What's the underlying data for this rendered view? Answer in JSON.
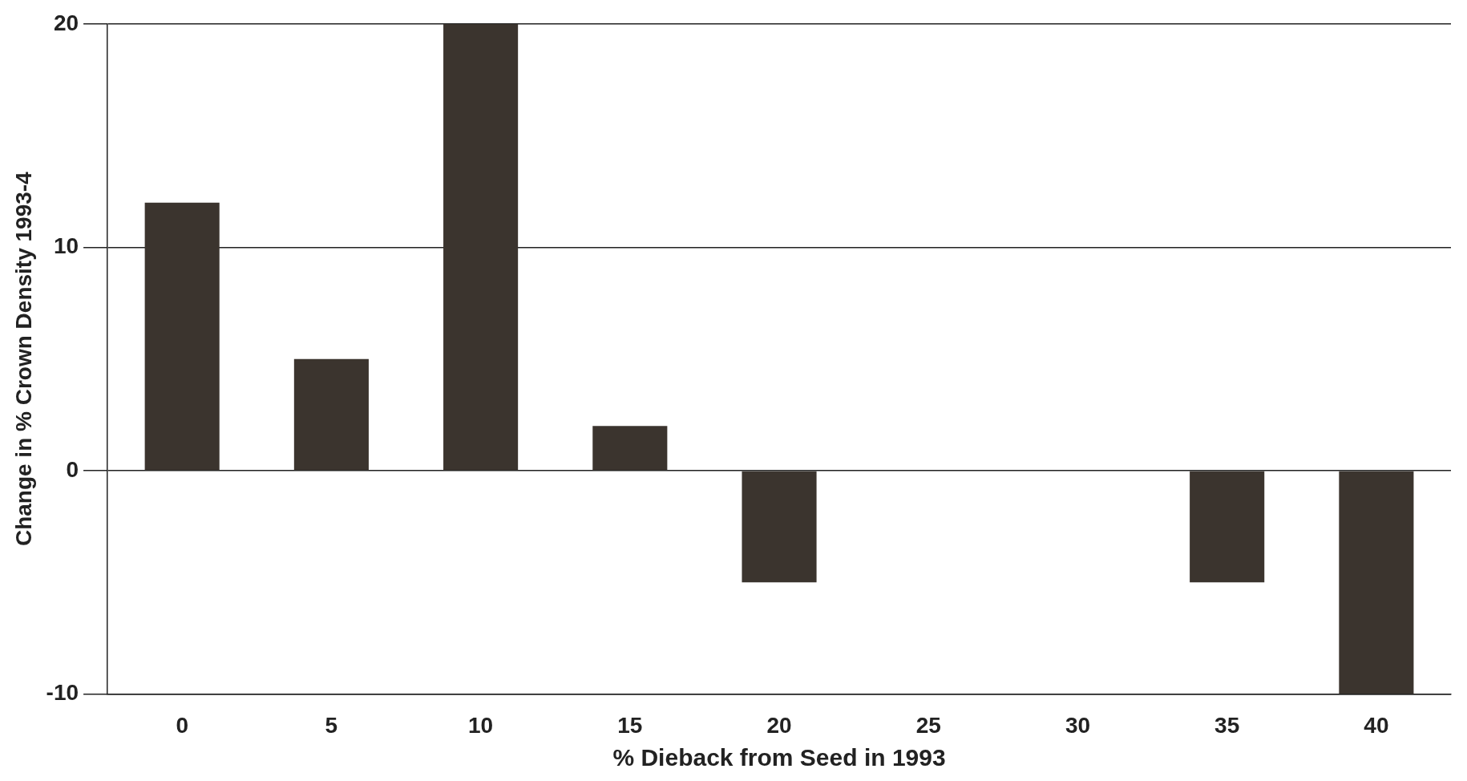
{
  "chart_data": {
    "type": "bar",
    "xlabel": "% Dieback from Seed in 1993",
    "ylabel": "Change in % Crown Density 1993-4",
    "categories": [
      "0",
      "5",
      "10",
      "15",
      "20",
      "25",
      "30",
      "35",
      "40"
    ],
    "values": [
      12,
      5,
      20,
      2,
      -5,
      null,
      null,
      -5,
      -10
    ],
    "color": "#3b342e",
    "ylim": [
      -10,
      20
    ],
    "yticks": [
      -10,
      0,
      10,
      20
    ],
    "grid": "y",
    "legend": false
  }
}
